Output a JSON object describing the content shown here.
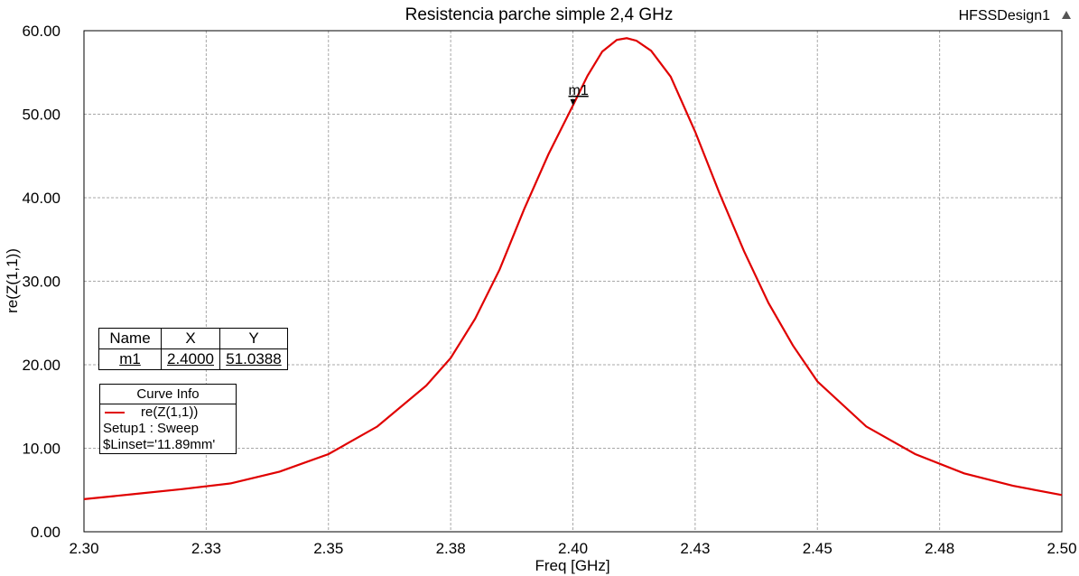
{
  "window": {
    "design_name": "HFSSDesign1",
    "design_icon": "triangle-up-icon"
  },
  "chart_data": {
    "type": "line",
    "title": "Resistencia parche simple 2,4 GHz",
    "xlabel": "Freq [GHz]",
    "ylabel": "re(Z(1,1))",
    "xlim": [
      2.3,
      2.5
    ],
    "ylim": [
      0,
      60
    ],
    "grid": true,
    "x_ticks": [
      "2.30",
      "2.33",
      "2.35",
      "2.38",
      "2.40",
      "2.43",
      "2.45",
      "2.48",
      "2.50"
    ],
    "y_ticks": [
      "0.00",
      "10.00",
      "20.00",
      "30.00",
      "40.00",
      "50.00",
      "60.00"
    ],
    "series": [
      {
        "name": "re(Z(1,1))",
        "color": "#e00000",
        "x": [
          2.3,
          2.31,
          2.32,
          2.33,
          2.34,
          2.35,
          2.36,
          2.37,
          2.375,
          2.38,
          2.385,
          2.39,
          2.395,
          2.4,
          2.403,
          2.406,
          2.409,
          2.411,
          2.413,
          2.416,
          2.42,
          2.425,
          2.43,
          2.435,
          2.44,
          2.445,
          2.45,
          2.46,
          2.47,
          2.48,
          2.49,
          2.5
        ],
        "y": [
          3.9,
          4.5,
          5.1,
          5.8,
          7.2,
          9.3,
          12.6,
          17.5,
          20.8,
          25.5,
          31.4,
          38.6,
          45.2,
          51.04,
          54.6,
          57.5,
          58.9,
          59.1,
          58.8,
          57.6,
          54.5,
          47.9,
          40.5,
          33.6,
          27.4,
          22.3,
          18.0,
          12.6,
          9.3,
          7.0,
          5.5,
          4.4
        ]
      }
    ],
    "marker": {
      "name": "m1",
      "x": 2.4,
      "y": 51.04
    },
    "marker_table": {
      "headers": [
        "Name",
        "X",
        "Y"
      ],
      "row": [
        "m1",
        "2.4000",
        "51.0388"
      ]
    },
    "curve_info": {
      "header": "Curve Info",
      "name": "re(Z(1,1))",
      "lines": [
        "Setup1 : Sweep",
        "$Linset='11.89mm'"
      ]
    }
  }
}
